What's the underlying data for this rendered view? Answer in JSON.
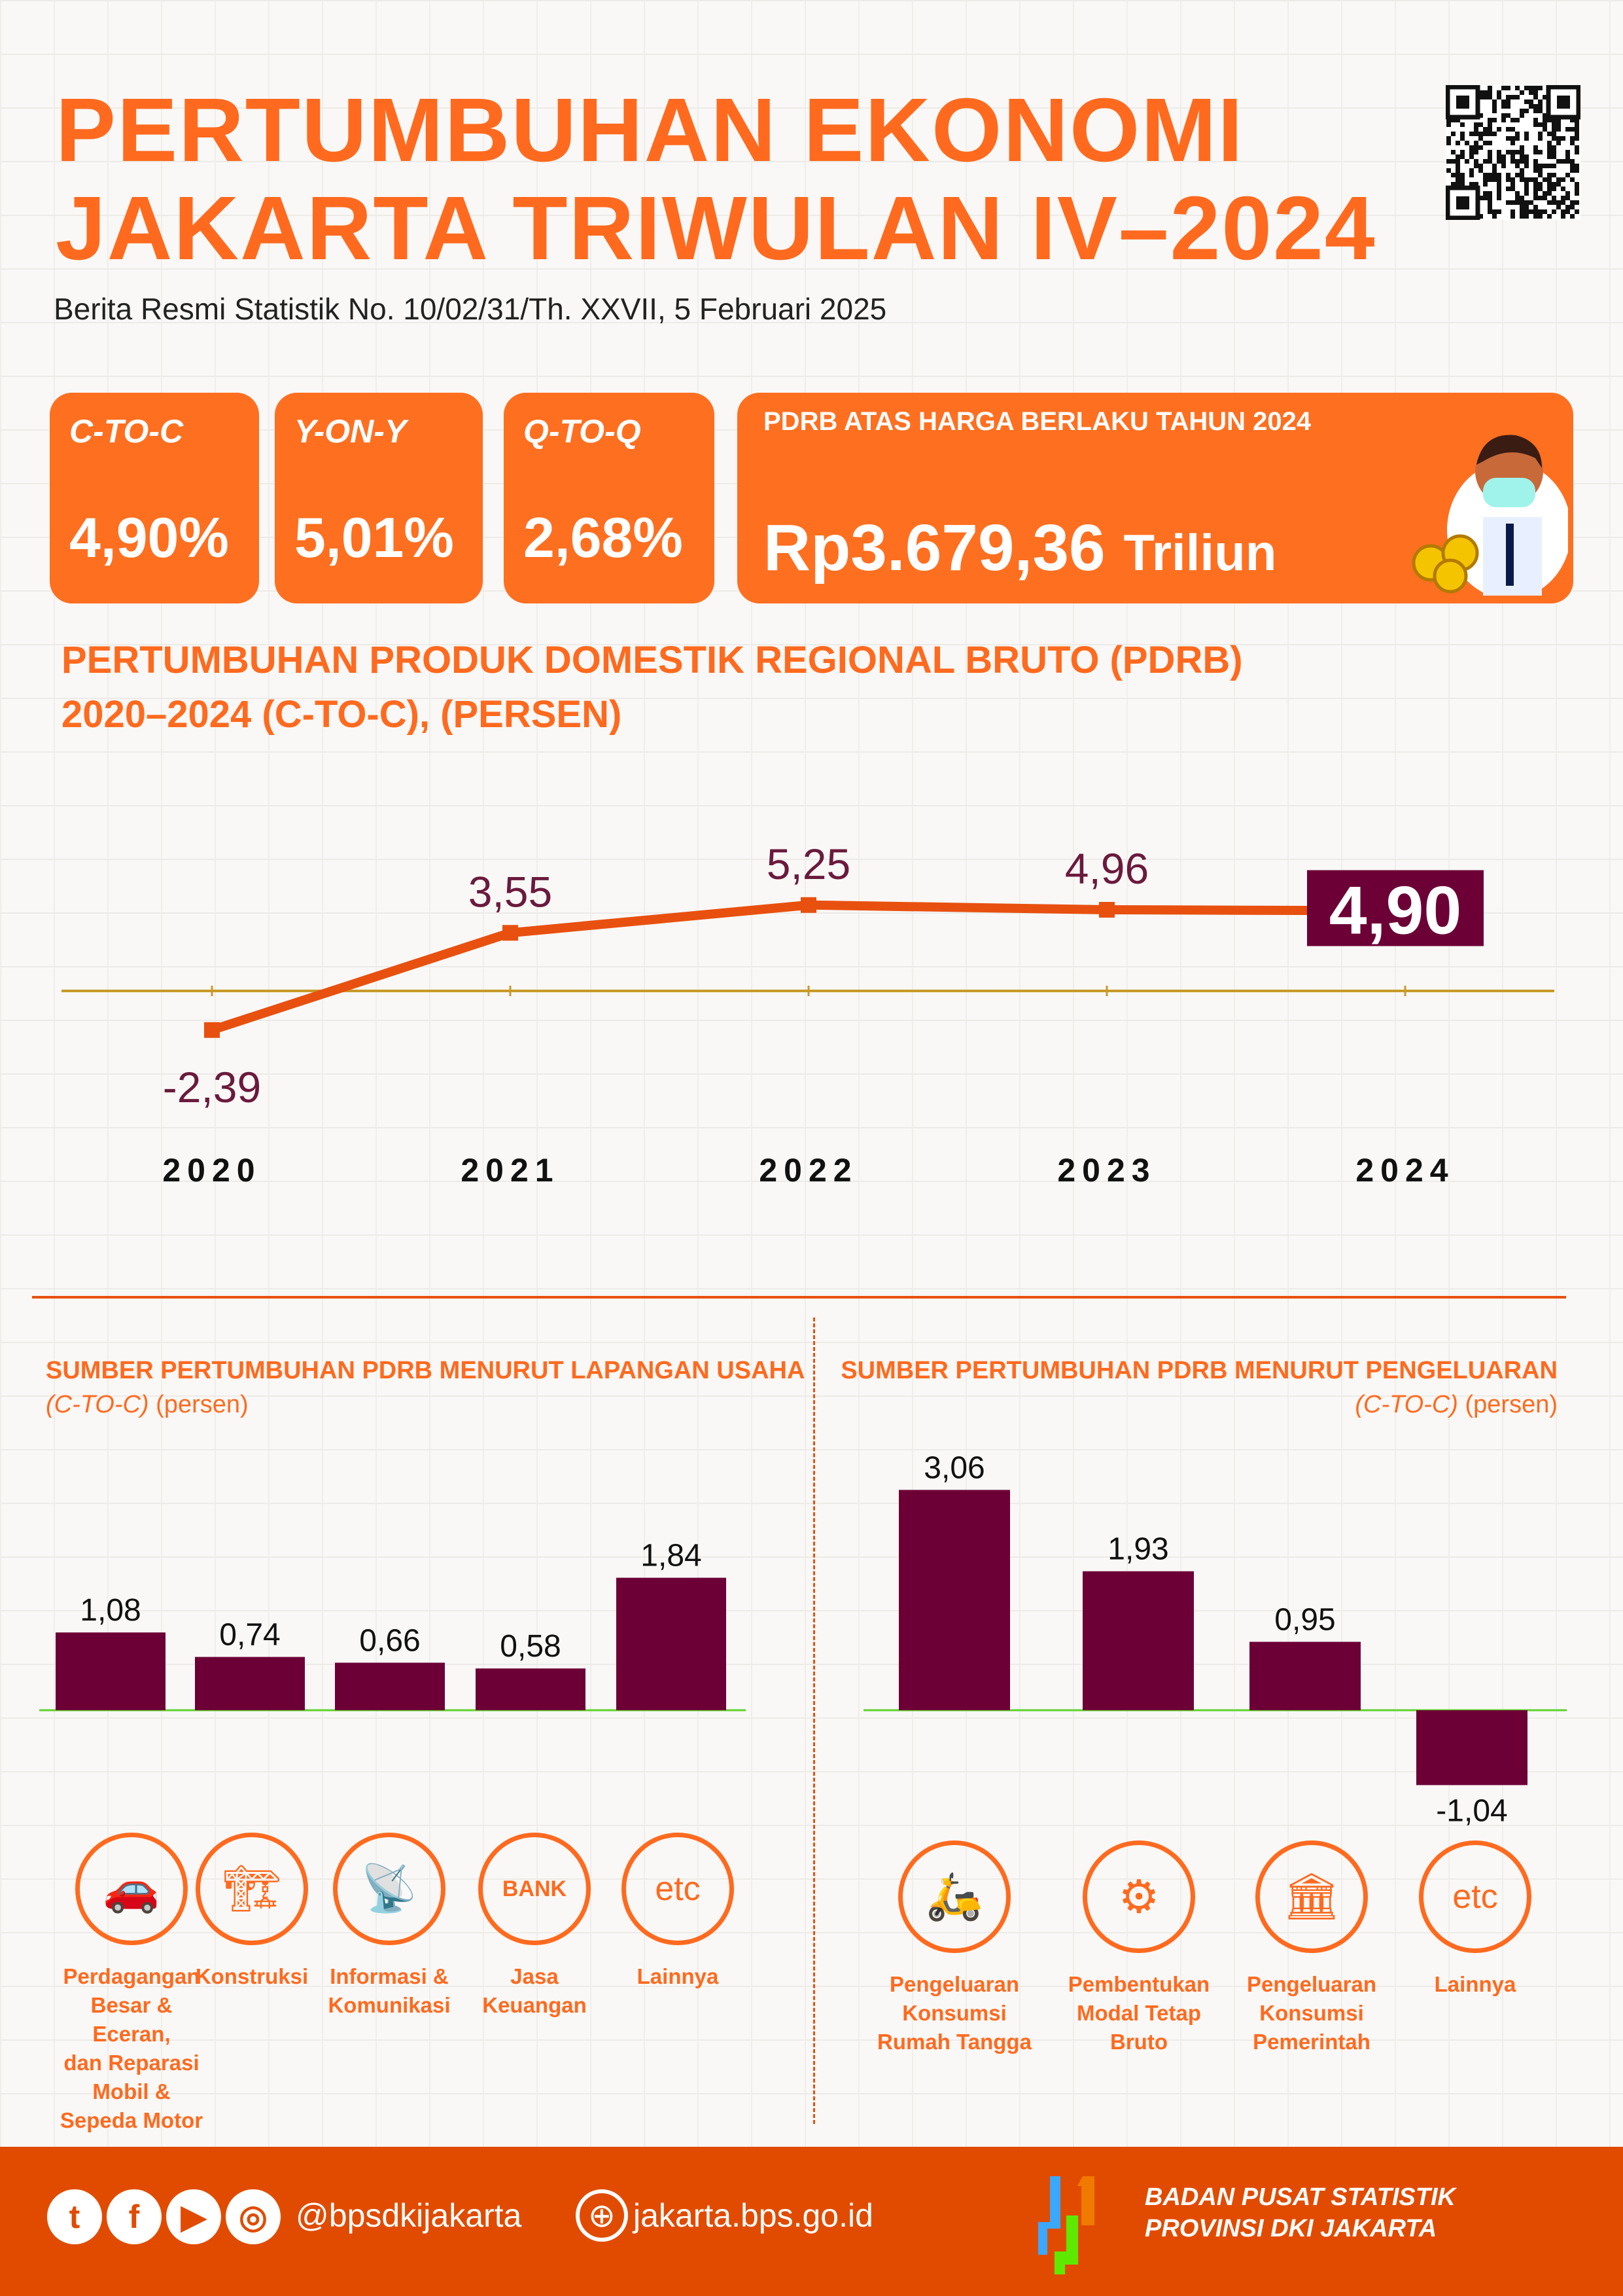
{
  "header": {
    "title_line1": "PERTUMBUHAN EKONOMI",
    "title_line2": "JAKARTA TRIWULAN IV–2024",
    "subtitle": "Berita Resmi Statistik No. 10/02/31/Th. XXVII, 5 Februari 2025",
    "qr_icon": "qr-code"
  },
  "cards": [
    {
      "label": "C-TO-C",
      "value": "4,90%"
    },
    {
      "label": "Y-ON-Y",
      "value": "5,01%"
    },
    {
      "label": "Q-TO-Q",
      "value": "2,68%"
    }
  ],
  "pdrb": {
    "label": "PDRB ATAS HARGA BERLAKU TAHUN 2024",
    "value": "Rp3.679,36",
    "unit": "Triliun"
  },
  "colors": {
    "orange": "#ff6f20",
    "maroon": "#6c0036",
    "line": "#e8500f",
    "footer": "#e14b00"
  },
  "chart_data": [
    {
      "type": "line",
      "title": "PERTUMBUHAN PRODUK DOMESTIK REGIONAL BRUTO (PDRB)",
      "subtitle": "2020–2024 (C-TO-C), (PERSEN)",
      "categories": [
        "2020",
        "2021",
        "2022",
        "2023",
        "2024"
      ],
      "values": [
        -2.39,
        3.55,
        5.25,
        4.96,
        4.9
      ],
      "labels": [
        "-2,39",
        "3,55",
        "5,25",
        "4,96",
        "4,90"
      ]
    },
    {
      "type": "bar",
      "title": "SUMBER PERTUMBUHAN PDRB MENURUT LAPANGAN USAHA",
      "subtitle_italic": "(C-TO-C)",
      "subtitle": "(persen)",
      "categories": [
        "Perdagangan Besar & Eceran, dan Reparasi Mobil & Sepeda Motor",
        "Konstruksi",
        "Informasi & Komunikasi",
        "Jasa Keuangan",
        "Lainnya"
      ],
      "values": [
        1.08,
        0.74,
        0.66,
        0.58,
        1.84
      ],
      "labels": [
        "1,08",
        "0,74",
        "0,66",
        "0,58",
        "1,84"
      ]
    },
    {
      "type": "bar",
      "title": "SUMBER PERTUMBUHAN PDRB MENURUT PENGELUARAN",
      "subtitle_italic": "(C-TO-C)",
      "subtitle": "(persen)",
      "categories": [
        "Pengeluaran Konsumsi Rumah Tangga",
        "Pembentukan Modal Tetap Bruto",
        "Pengeluaran Konsumsi Pemerintah",
        "Lainnya"
      ],
      "values": [
        3.06,
        1.93,
        0.95,
        -1.04
      ],
      "labels": [
        "3,06",
        "1,93",
        "0,95",
        "-1,04"
      ]
    }
  ],
  "left_icons": [
    {
      "icon": "hands-car",
      "lines": [
        "Perdagangan",
        "Besar & Eceran,",
        "dan Reparasi",
        "Mobil &",
        "Sepeda Motor"
      ]
    },
    {
      "icon": "crane-building",
      "lines": [
        "Konstruksi"
      ]
    },
    {
      "icon": "satellite-dish",
      "lines": [
        "Informasi &",
        "Komunikasi"
      ]
    },
    {
      "icon": "bank",
      "lines": [
        "Jasa",
        "Keuangan"
      ],
      "text": "BANK"
    },
    {
      "icon": "etc",
      "lines": [
        "Lainnya"
      ],
      "text": "etc"
    }
  ],
  "right_icons": [
    {
      "icon": "household-scooter",
      "lines": [
        "Pengeluaran",
        "Konsumsi",
        "Rumah Tangga"
      ]
    },
    {
      "icon": "robot-arm",
      "lines": [
        "Pembentukan",
        "Modal Tetap Bruto"
      ]
    },
    {
      "icon": "government-building",
      "lines": [
        "Pengeluaran",
        "Konsumsi",
        "Pemerintah"
      ]
    },
    {
      "icon": "etc",
      "lines": [
        "Lainnya"
      ],
      "text": "etc"
    }
  ],
  "footer": {
    "handle": "@bpsdkijakarta",
    "website": "jakarta.bps.go.id",
    "org_line1": "BADAN PUSAT STATISTIK",
    "org_line2": "PROVINSI DKI JAKARTA"
  }
}
